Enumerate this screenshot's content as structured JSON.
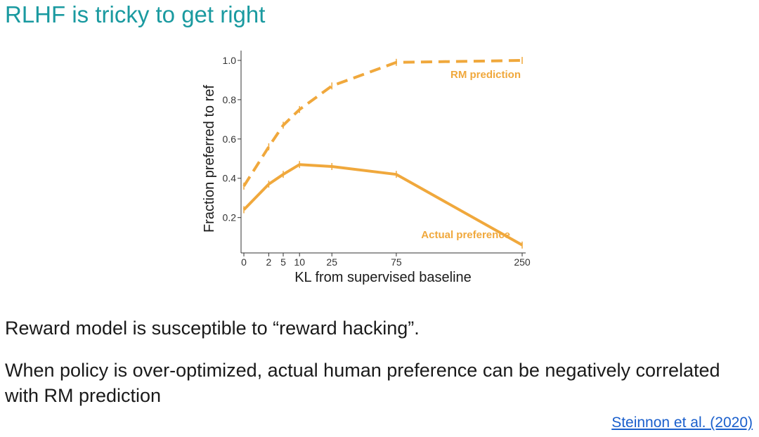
{
  "slide": {
    "title": "RLHF is tricky to get right",
    "bullets": [
      "Reward model is susceptible to “reward hacking”.",
      "When policy is over-optimized, actual human preference can be negatively correlated with RM prediction"
    ],
    "citation": "Steinnon et al. (2020)"
  },
  "colors": {
    "title": "#1a9aa0",
    "series": "#f0a83c",
    "link": "#1a5fcc"
  },
  "chart_data": {
    "type": "line",
    "title": "",
    "xlabel": "KL from supervised baseline",
    "ylabel": "Fraction preferred to ref",
    "x": [
      0,
      2,
      5,
      10,
      25,
      75,
      250
    ],
    "x_tick_labels": [
      "0",
      "2",
      "5",
      "10",
      "25",
      "75",
      "250"
    ],
    "y_ticks": [
      0.2,
      0.4,
      0.6,
      0.8,
      1.0
    ],
    "y_tick_labels": [
      "0.2",
      "0.4",
      "0.6",
      "0.8",
      "1.0"
    ],
    "ylim": [
      0.02,
      1.05
    ],
    "x_scale": "sqrt",
    "series": [
      {
        "name": "RM prediction",
        "style": "dashed",
        "x": [
          0,
          2,
          5,
          10,
          25,
          75,
          250
        ],
        "values": [
          0.36,
          0.56,
          0.67,
          0.75,
          0.87,
          0.99,
          1.0
        ]
      },
      {
        "name": "Actual preference",
        "style": "solid",
        "x": [
          0,
          2,
          5,
          10,
          25,
          75,
          250
        ],
        "values": [
          0.24,
          0.37,
          0.42,
          0.47,
          0.46,
          0.42,
          0.06
        ]
      }
    ]
  }
}
